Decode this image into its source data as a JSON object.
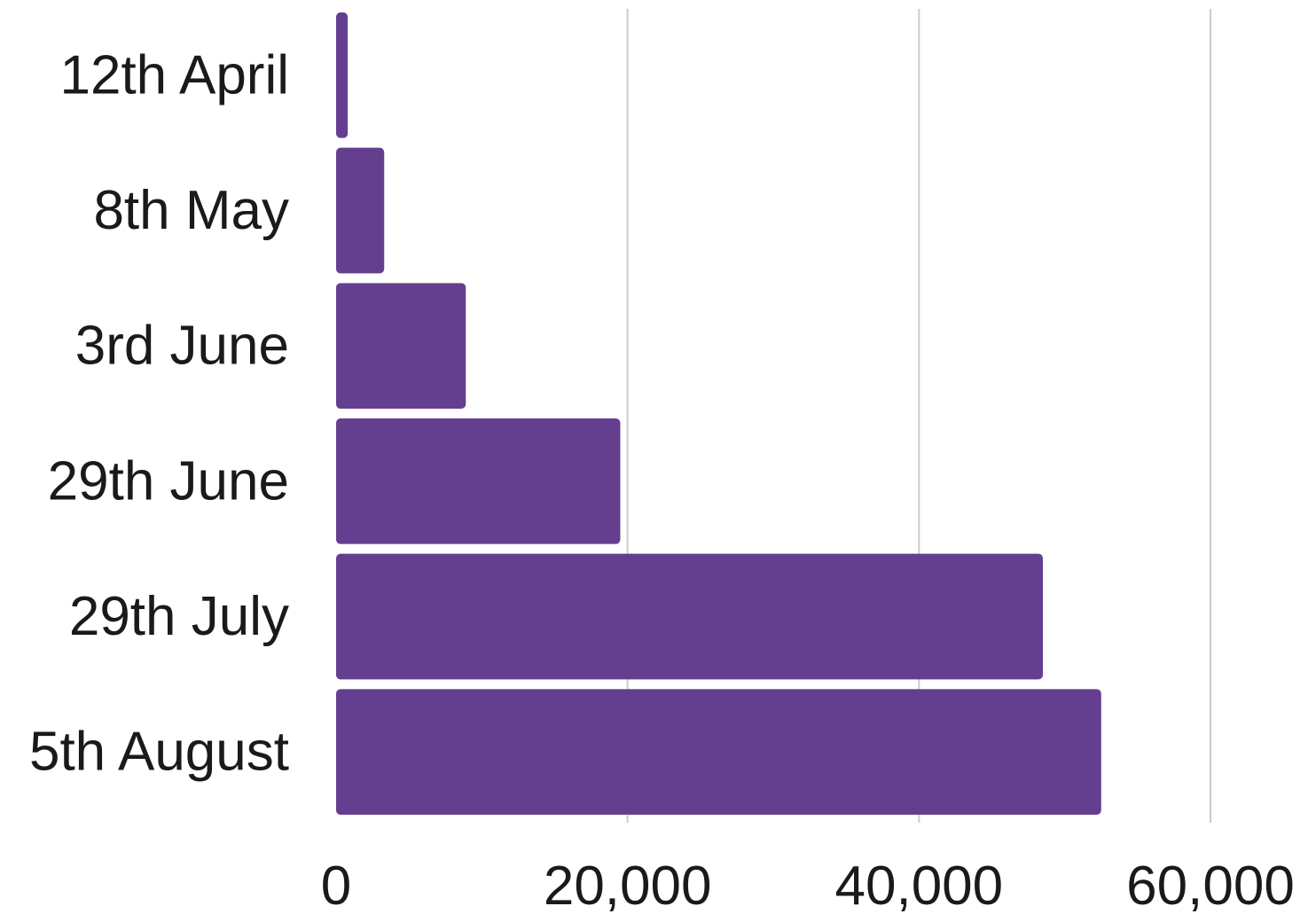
{
  "chart_data": {
    "type": "bar",
    "orientation": "horizontal",
    "categories": [
      "12th April",
      "8th May",
      "3rd June",
      "29th June",
      "29th July",
      "5th August"
    ],
    "values": [
      800,
      3300,
      8900,
      19500,
      48500,
      52500
    ],
    "xlim": [
      0,
      60000
    ],
    "xticks": [
      0,
      20000,
      40000,
      60000
    ],
    "xtick_labels": [
      "0",
      "20,000",
      "40,000",
      "60,000"
    ],
    "grid": "vertical",
    "legend": "none",
    "colors": {
      "bar": "#643f8f",
      "grid": "#cccccc",
      "text": "#1a1a1a"
    }
  }
}
